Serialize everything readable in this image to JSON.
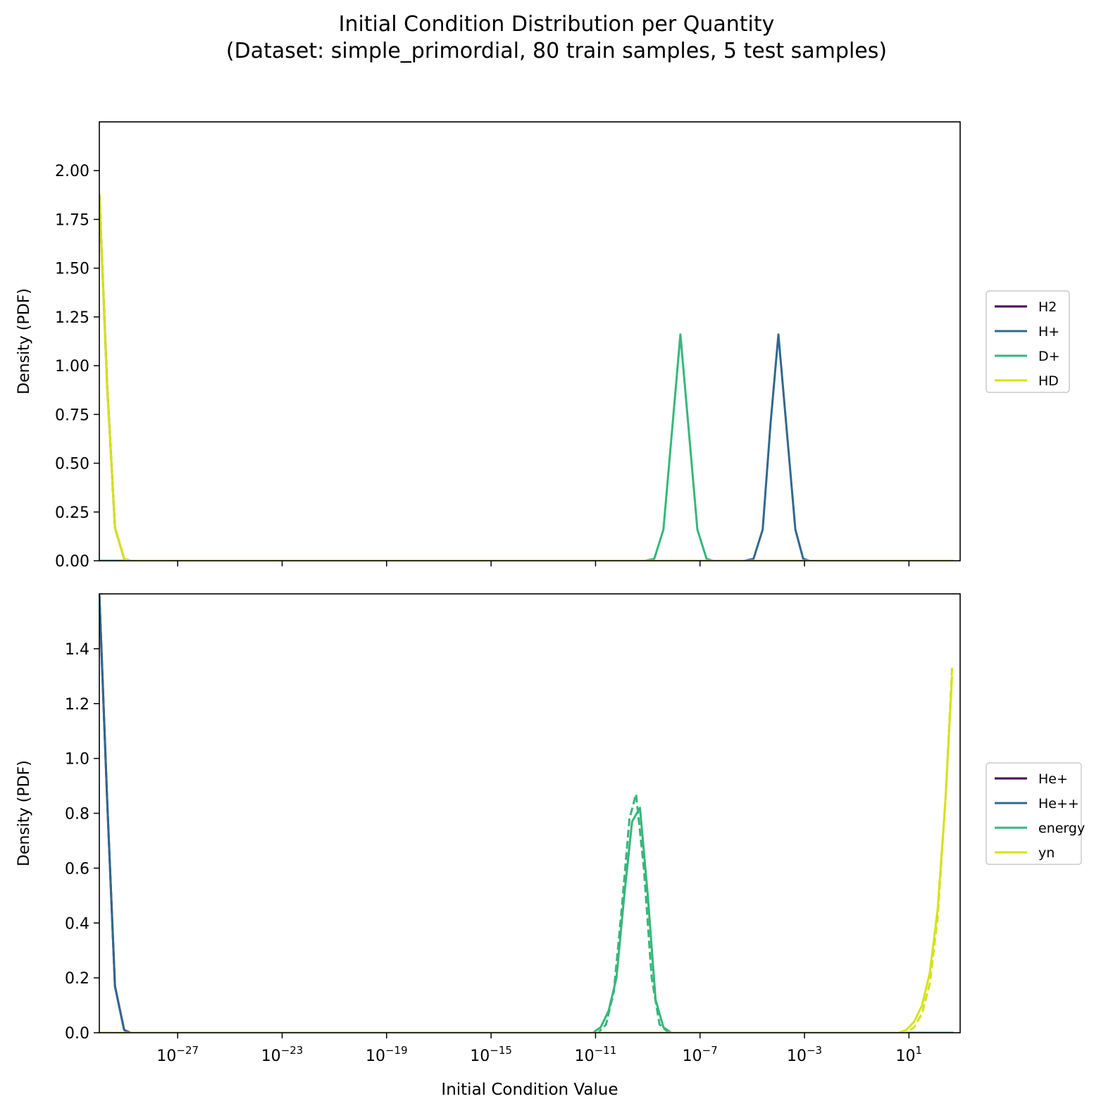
{
  "figure": {
    "title": "Initial Condition Distribution per Quantity",
    "subtitle": "(Dataset: simple_primordial, 80 train samples, 5 test samples)"
  },
  "chart_data": [
    {
      "type": "line",
      "xscale": "log",
      "xlim_exp": [
        -30,
        2.96
      ],
      "ylim": [
        0,
        2.25
      ],
      "xlabel": "",
      "ylabel": "Density (PDF)",
      "xticks_exp": [
        -27,
        -23,
        -19,
        -15,
        -11,
        -7,
        -3,
        1
      ],
      "xtick_labels_visible": false,
      "yticks": [
        0.0,
        0.25,
        0.5,
        0.75,
        1.0,
        1.25,
        1.5,
        1.75,
        2.0
      ],
      "ytick_labels": [
        "0.00",
        "0.25",
        "0.50",
        "0.75",
        "1.00",
        "1.25",
        "1.50",
        "1.75",
        "2.00"
      ],
      "grid": false,
      "legend": {
        "placement": "outside-right",
        "entries": [
          "H2",
          "H+",
          "D+",
          "HD"
        ]
      },
      "series": [
        {
          "name": "H2",
          "color": "#440154",
          "style": "solid",
          "points": [
            [
              -30,
              1.88
            ],
            [
              -29.7,
              0.9
            ],
            [
              -29.4,
              0.17
            ],
            [
              -29.05,
              0.01
            ],
            [
              -28.8,
              0.0
            ],
            [
              2.7,
              0.0
            ]
          ]
        },
        {
          "name": "H+",
          "color": "#31688e",
          "style": "solid",
          "points": [
            [
              -30,
              0.0
            ],
            [
              -5.3,
              0.0
            ],
            [
              -4.95,
              0.01
            ],
            [
              -4.6,
              0.16
            ],
            [
              -4.3,
              0.7
            ],
            [
              -4.0,
              1.16
            ],
            [
              -3.7,
              0.7
            ],
            [
              -3.35,
              0.16
            ],
            [
              -3.05,
              0.01
            ],
            [
              -2.8,
              0.0
            ],
            [
              2.7,
              0.0
            ]
          ]
        },
        {
          "name": "D+",
          "color": "#35b779",
          "style": "solid",
          "points": [
            [
              -30,
              0.0
            ],
            [
              -9.1,
              0.0
            ],
            [
              -8.75,
              0.01
            ],
            [
              -8.4,
              0.16
            ],
            [
              -8.05,
              0.7
            ],
            [
              -7.75,
              1.16
            ],
            [
              -7.45,
              0.7
            ],
            [
              -7.1,
              0.16
            ],
            [
              -6.75,
              0.01
            ],
            [
              -6.5,
              0.0
            ],
            [
              2.7,
              0.0
            ]
          ]
        },
        {
          "name": "HD",
          "color": "#d5e21a",
          "style": "solid",
          "points": [
            [
              -30,
              1.88
            ],
            [
              -29.7,
              0.9
            ],
            [
              -29.4,
              0.17
            ],
            [
              -29.05,
              0.01
            ],
            [
              -28.8,
              0.0
            ],
            [
              2.7,
              0.0
            ]
          ]
        },
        {
          "name": "",
          "color": "#d5e21a",
          "style": "dashed",
          "points": [
            [
              -30,
              1.86
            ],
            [
              -29.7,
              0.88
            ],
            [
              -29.4,
              0.17
            ],
            [
              -29.05,
              0.01
            ],
            [
              -28.8,
              0.0
            ],
            [
              2.7,
              0.0
            ]
          ]
        }
      ]
    },
    {
      "type": "line",
      "xscale": "log",
      "xlim_exp": [
        -30,
        2.96
      ],
      "ylim": [
        0,
        1.6
      ],
      "xlabel": "Initial Condition Value",
      "ylabel": "Density (PDF)",
      "xticks_exp": [
        -27,
        -23,
        -19,
        -15,
        -11,
        -7,
        -3,
        1
      ],
      "xtick_labels_visible": true,
      "yticks": [
        0.0,
        0.2,
        0.4,
        0.6,
        0.8,
        1.0,
        1.2,
        1.4
      ],
      "ytick_labels": [
        "0.0",
        "0.2",
        "0.4",
        "0.6",
        "0.8",
        "1.0",
        "1.2",
        "1.4"
      ],
      "grid": false,
      "legend": {
        "placement": "outside-right",
        "entries": [
          "He+",
          "He++",
          "energy",
          "yn"
        ]
      },
      "series": [
        {
          "name": "He+",
          "color": "#440154",
          "style": "solid",
          "points": [
            [
              -30,
              1.6
            ],
            [
              -29.7,
              0.85
            ],
            [
              -29.4,
              0.17
            ],
            [
              -29.05,
              0.01
            ],
            [
              -28.8,
              0.0
            ],
            [
              2.7,
              0.0
            ]
          ]
        },
        {
          "name": "He++",
          "color": "#31688e",
          "style": "solid",
          "points": [
            [
              -30,
              1.6
            ],
            [
              -29.7,
              0.85
            ],
            [
              -29.4,
              0.17
            ],
            [
              -29.05,
              0.01
            ],
            [
              -28.8,
              0.0
            ],
            [
              2.7,
              0.0
            ]
          ]
        },
        {
          "name": "energy",
          "color": "#35b779",
          "style": "solid",
          "points": [
            [
              -30,
              0.0
            ],
            [
              -11.1,
              0.0
            ],
            [
              -10.8,
              0.02
            ],
            [
              -10.5,
              0.08
            ],
            [
              -10.2,
              0.2
            ],
            [
              -9.9,
              0.5
            ],
            [
              -9.6,
              0.77
            ],
            [
              -9.3,
              0.82
            ],
            [
              -9.0,
              0.5
            ],
            [
              -8.7,
              0.12
            ],
            [
              -8.4,
              0.02
            ],
            [
              -8.1,
              0.0
            ],
            [
              2.7,
              0.0
            ]
          ]
        },
        {
          "name": "",
          "color": "#35b779",
          "style": "dashed",
          "points": [
            [
              -30,
              0.0
            ],
            [
              -10.9,
              0.0
            ],
            [
              -10.6,
              0.03
            ],
            [
              -10.3,
              0.15
            ],
            [
              -10.0,
              0.45
            ],
            [
              -9.7,
              0.78
            ],
            [
              -9.45,
              0.87
            ],
            [
              -9.15,
              0.6
            ],
            [
              -8.85,
              0.2
            ],
            [
              -8.55,
              0.03
            ],
            [
              -8.2,
              0.0
            ],
            [
              2.7,
              0.0
            ]
          ]
        },
        {
          "name": "yn",
          "color": "#d5e21a",
          "style": "solid",
          "points": [
            [
              -30,
              0.0
            ],
            [
              0.6,
              0.0
            ],
            [
              0.9,
              0.01
            ],
            [
              1.2,
              0.04
            ],
            [
              1.5,
              0.1
            ],
            [
              1.8,
              0.22
            ],
            [
              2.1,
              0.45
            ],
            [
              2.4,
              0.85
            ],
            [
              2.65,
              1.3
            ]
          ]
        },
        {
          "name": "",
          "color": "#d5e21a",
          "style": "dashed",
          "points": [
            [
              -30,
              0.0
            ],
            [
              0.9,
              0.0
            ],
            [
              1.2,
              0.02
            ],
            [
              1.5,
              0.07
            ],
            [
              1.8,
              0.18
            ],
            [
              2.1,
              0.42
            ],
            [
              2.4,
              0.85
            ],
            [
              2.65,
              1.33
            ]
          ]
        }
      ]
    }
  ]
}
